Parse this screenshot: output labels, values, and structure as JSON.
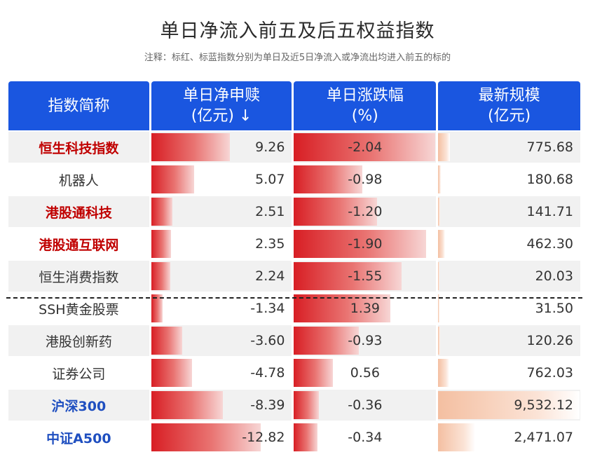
{
  "title": "单日净流入前五及后五权益指数",
  "note": "注释：标红、标蓝指数分别为单日及近5日净流入或净流出均进入前五的标的",
  "headers": {
    "name": "指数简称",
    "flow_l1": "单日净申赎",
    "flow_l2": "(亿元) ↓",
    "chg_l1": "单日涨跌幅",
    "chg_l2": "(%)",
    "scale_l1": "最新规模",
    "scale_l2": "(亿元)"
  },
  "colors": {
    "header_bg": "#1a56e0",
    "highlight_red": "#c00000",
    "highlight_blue": "#1f4fc0",
    "bar_red": "#d81e24",
    "bar_peach": "#f4bfa1"
  },
  "chart_data": {
    "type": "table",
    "columns": [
      "指数简称",
      "单日净申赎(亿元)",
      "单日涨跌幅(%)",
      "最新规模(亿元)"
    ],
    "rows": [
      {
        "name": "恒生科技指数",
        "highlight": "red",
        "flow": "9.26",
        "change": "-2.04",
        "scale": "775.68"
      },
      {
        "name": "机器人",
        "highlight": "none",
        "flow": "5.07",
        "change": "-0.98",
        "scale": "180.68"
      },
      {
        "name": "港股通科技",
        "highlight": "red",
        "flow": "2.51",
        "change": "-1.20",
        "scale": "141.71"
      },
      {
        "name": "港股通互联网",
        "highlight": "red",
        "flow": "2.35",
        "change": "-1.90",
        "scale": "462.30"
      },
      {
        "name": "恒生消费指数",
        "highlight": "none",
        "flow": "2.24",
        "change": "-1.55",
        "scale": "20.03"
      },
      {
        "name": "SSH黄金股票",
        "highlight": "none",
        "flow": "-1.34",
        "change": "1.39",
        "scale": "31.50"
      },
      {
        "name": "港股创新药",
        "highlight": "none",
        "flow": "-3.60",
        "change": "-0.93",
        "scale": "120.26"
      },
      {
        "name": "证券公司",
        "highlight": "none",
        "flow": "-4.78",
        "change": "0.56",
        "scale": "762.03"
      },
      {
        "name": "沪深300",
        "highlight": "blue",
        "flow": "-8.39",
        "change": "-0.36",
        "scale": "9,532.12"
      },
      {
        "name": "中证A500",
        "highlight": "blue",
        "flow": "-12.82",
        "change": "-0.34",
        "scale": "2,471.07"
      }
    ]
  }
}
